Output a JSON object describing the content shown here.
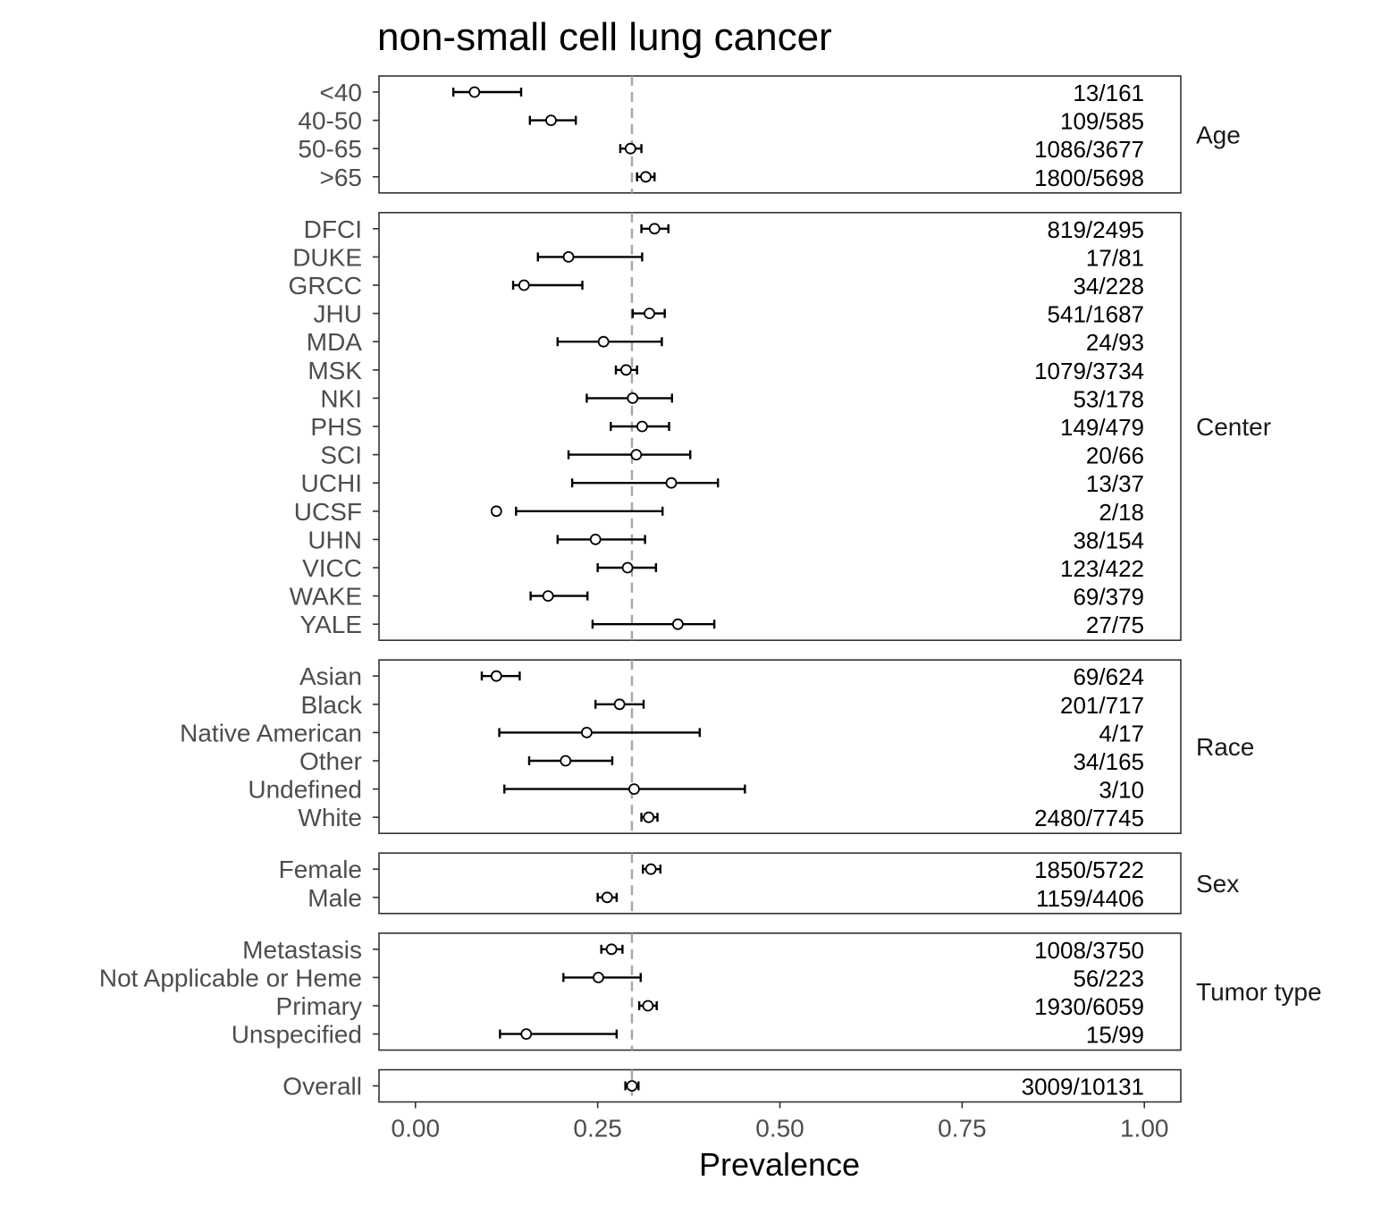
{
  "chart_data": {
    "type": "forest",
    "title": "non-small cell lung cancer",
    "xlabel": "Prevalence",
    "ylabel": "",
    "xlim": [
      -0.05,
      1.05
    ],
    "xticks": [
      0,
      0.25,
      0.5,
      0.75,
      1
    ],
    "xtick_labels": [
      "0.00",
      "0.25",
      "0.50",
      "0.75",
      "1.00"
    ],
    "reference_line": 0.297,
    "grid": false,
    "facets": [
      {
        "name": "Age",
        "rows": [
          {
            "label": "<40",
            "value": 0.081,
            "lower": 0.052,
            "upper": 0.145,
            "count": "13/161"
          },
          {
            "label": "40-50",
            "value": 0.186,
            "lower": 0.157,
            "upper": 0.22,
            "count": "109/585"
          },
          {
            "label": "50-65",
            "value": 0.295,
            "lower": 0.281,
            "upper": 0.31,
            "count": "1086/3677"
          },
          {
            "label": ">65",
            "value": 0.316,
            "lower": 0.304,
            "upper": 0.328,
            "count": "1800/5698"
          }
        ]
      },
      {
        "name": "Center",
        "rows": [
          {
            "label": "DFCI",
            "value": 0.328,
            "lower": 0.31,
            "upper": 0.347,
            "count": "819/2495"
          },
          {
            "label": "DUKE",
            "value": 0.21,
            "lower": 0.168,
            "upper": 0.311,
            "count": "17/81"
          },
          {
            "label": "GRCC",
            "value": 0.149,
            "lower": 0.134,
            "upper": 0.229,
            "count": "34/228"
          },
          {
            "label": "JHU",
            "value": 0.321,
            "lower": 0.298,
            "upper": 0.342,
            "count": "541/1687"
          },
          {
            "label": "MDA",
            "value": 0.258,
            "lower": 0.195,
            "upper": 0.338,
            "count": "24/93"
          },
          {
            "label": "MSK",
            "value": 0.289,
            "lower": 0.275,
            "upper": 0.304,
            "count": "1079/3734"
          },
          {
            "label": "NKI",
            "value": 0.298,
            "lower": 0.235,
            "upper": 0.352,
            "count": "53/178"
          },
          {
            "label": "PHS",
            "value": 0.311,
            "lower": 0.268,
            "upper": 0.348,
            "count": "149/479"
          },
          {
            "label": "SCI",
            "value": 0.303,
            "lower": 0.21,
            "upper": 0.377,
            "count": "20/66"
          },
          {
            "label": "UCHI",
            "value": 0.351,
            "lower": 0.215,
            "upper": 0.415,
            "count": "13/37"
          },
          {
            "label": "UCSF",
            "value": 0.111,
            "lower": 0.138,
            "upper": 0.339,
            "count": "2/18"
          },
          {
            "label": "UHN",
            "value": 0.247,
            "lower": 0.195,
            "upper": 0.315,
            "count": "38/154"
          },
          {
            "label": "VICC",
            "value": 0.291,
            "lower": 0.25,
            "upper": 0.33,
            "count": "123/422"
          },
          {
            "label": "WAKE",
            "value": 0.182,
            "lower": 0.158,
            "upper": 0.236,
            "count": "69/379"
          },
          {
            "label": "YALE",
            "value": 0.36,
            "lower": 0.243,
            "upper": 0.41,
            "count": "27/75"
          }
        ]
      },
      {
        "name": "Race",
        "rows": [
          {
            "label": "Asian",
            "value": 0.111,
            "lower": 0.091,
            "upper": 0.143,
            "count": "69/624"
          },
          {
            "label": "Black",
            "value": 0.28,
            "lower": 0.247,
            "upper": 0.313,
            "count": "201/717"
          },
          {
            "label": "Native American",
            "value": 0.235,
            "lower": 0.115,
            "upper": 0.39,
            "count": "4/17"
          },
          {
            "label": "Other",
            "value": 0.206,
            "lower": 0.156,
            "upper": 0.27,
            "count": "34/165"
          },
          {
            "label": "Undefined",
            "value": 0.3,
            "lower": 0.122,
            "upper": 0.452,
            "count": "3/10"
          },
          {
            "label": "White",
            "value": 0.32,
            "lower": 0.31,
            "upper": 0.332,
            "count": "2480/7745"
          }
        ]
      },
      {
        "name": "Sex",
        "rows": [
          {
            "label": "Female",
            "value": 0.323,
            "lower": 0.312,
            "upper": 0.336,
            "count": "1850/5722"
          },
          {
            "label": "Male",
            "value": 0.263,
            "lower": 0.25,
            "upper": 0.276,
            "count": "1159/4406"
          }
        ]
      },
      {
        "name": "Tumor type",
        "rows": [
          {
            "label": "Metastasis",
            "value": 0.269,
            "lower": 0.255,
            "upper": 0.284,
            "count": "1008/3750"
          },
          {
            "label": "Not Applicable or Heme",
            "value": 0.251,
            "lower": 0.203,
            "upper": 0.309,
            "count": "56/223"
          },
          {
            "label": "Primary",
            "value": 0.319,
            "lower": 0.307,
            "upper": 0.331,
            "count": "1930/6059"
          },
          {
            "label": "Unspecified",
            "value": 0.152,
            "lower": 0.116,
            "upper": 0.276,
            "count": "15/99"
          }
        ]
      },
      {
        "name": "",
        "rows": [
          {
            "label": "Overall",
            "value": 0.297,
            "lower": 0.288,
            "upper": 0.306,
            "count": "3009/10131"
          }
        ]
      }
    ]
  }
}
